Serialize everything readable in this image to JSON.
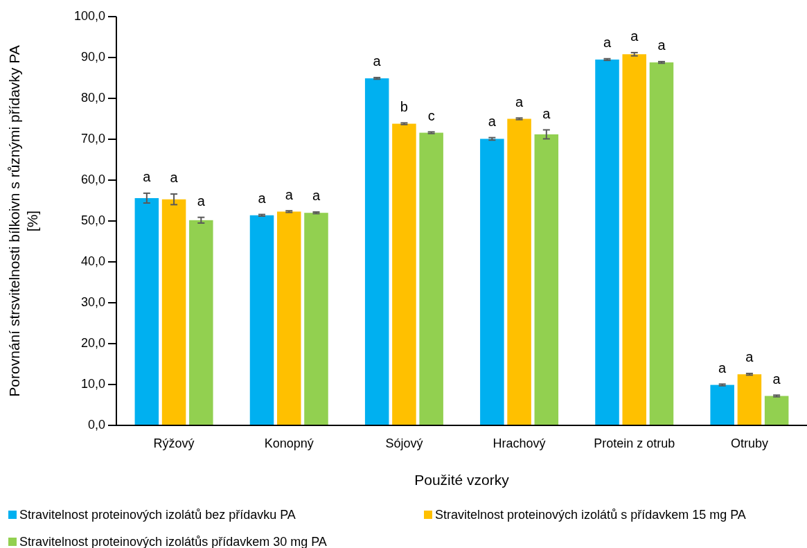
{
  "chart_data": {
    "type": "bar",
    "xlabel": "Použité vzorky",
    "ylabel": "Porovnání strsvitelnosti bílkoivn s různými přídavky PA [%]",
    "categories": [
      "Rýžový",
      "Konopný",
      "Sójový",
      "Hrachový",
      "Protein z otrub",
      "Otruby"
    ],
    "series": [
      {
        "name": "Stravitelnost proteinových izolátů bez přídavku PA",
        "color": "#00b0f0",
        "values": [
          55.6,
          51.4,
          84.9,
          70.1,
          89.5,
          9.9
        ],
        "errors": [
          1.2,
          0.2,
          0.2,
          0.3,
          0.2,
          0.2
        ]
      },
      {
        "name": "Stravitelnost proteinových izolátů s přídavkem 15 mg PA",
        "color": "#ffc000",
        "values": [
          55.3,
          52.3,
          73.8,
          75.0,
          90.8,
          12.5
        ],
        "errors": [
          1.3,
          0.2,
          0.2,
          0.2,
          0.4,
          0.2
        ]
      },
      {
        "name": "Stravitelnost proteinových izolátůs přídavkem 30 mg PA",
        "color": "#92d050",
        "values": [
          50.2,
          52.0,
          71.6,
          71.2,
          88.8,
          7.2
        ],
        "errors": [
          0.7,
          0.2,
          0.2,
          1.1,
          0.2,
          0.2
        ]
      }
    ],
    "ylim": [
      0,
      100
    ],
    "yticks": [
      {
        "value": 0,
        "label": "0,0"
      },
      {
        "value": 10,
        "label": "10,0"
      },
      {
        "value": 20,
        "label": "20,0"
      },
      {
        "value": 30,
        "label": "30,0"
      },
      {
        "value": 40,
        "label": "40,0"
      },
      {
        "value": 50,
        "label": "50,0"
      },
      {
        "value": 60,
        "label": "60,0"
      },
      {
        "value": 70,
        "label": "70,0"
      },
      {
        "value": 80,
        "label": "80,0"
      },
      {
        "value": 90,
        "label": "90,0"
      },
      {
        "value": 100,
        "label": "100,0"
      }
    ],
    "grid": false,
    "legend": "bottom",
    "annotations": [
      "a",
      "a",
      "a",
      "a",
      "a",
      "a",
      "a",
      "b",
      "c",
      "a",
      "a",
      "a",
      "a",
      "a",
      "a",
      "a",
      "a",
      "a"
    ]
  }
}
